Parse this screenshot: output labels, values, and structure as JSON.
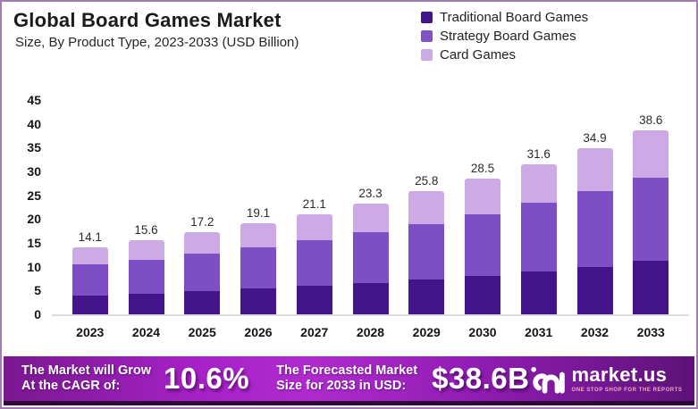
{
  "header": {
    "title": "Global Board Games Market",
    "subtitle": "Size, By Product Type, 2023-2033 (USD Billion)"
  },
  "legend": [
    {
      "label": "Traditional Board Games",
      "color": "#44148A"
    },
    {
      "label": "Strategy Board Games",
      "color": "#8052C5"
    },
    {
      "label": "Card Games",
      "color": "#CDA9E5"
    }
  ],
  "chart_data": {
    "type": "bar",
    "stacked": true,
    "title": "Global Board Games Market Size, By Product Type, 2023-2033 (USD Billion)",
    "categories": [
      "2023",
      "2024",
      "2025",
      "2026",
      "2027",
      "2028",
      "2029",
      "2030",
      "2031",
      "2032",
      "2033"
    ],
    "series": [
      {
        "name": "Traditional Board Games",
        "color": "#44148A",
        "values": [
          4.0,
          4.4,
          4.9,
          5.4,
          6.0,
          6.6,
          7.3,
          8.1,
          9.0,
          9.9,
          11.2
        ]
      },
      {
        "name": "Strategy Board Games",
        "color": "#7D4EC4",
        "values": [
          6.5,
          7.1,
          7.9,
          8.7,
          9.6,
          10.6,
          11.7,
          13.0,
          14.4,
          15.9,
          17.5
        ]
      },
      {
        "name": "Card Games",
        "color": "#CDA9E5",
        "values": [
          3.6,
          4.1,
          4.4,
          5.0,
          5.5,
          6.1,
          6.8,
          7.4,
          8.2,
          9.1,
          9.9
        ]
      }
    ],
    "totals": [
      14.1,
      15.6,
      17.2,
      19.1,
      21.1,
      23.3,
      25.8,
      28.5,
      31.6,
      34.9,
      38.6
    ],
    "total_labels": [
      "14.1",
      "15.6",
      "17.2",
      "19.1",
      "21.1",
      "23.3",
      "25.8",
      "28.5",
      "31.6",
      "34.9",
      "38.6"
    ],
    "ylabel": "",
    "xlabel": "",
    "ylim": [
      0,
      45
    ],
    "yticks": [
      0,
      5,
      10,
      15,
      20,
      25,
      30,
      35,
      40,
      45
    ],
    "grid": false,
    "legend_position": "top-right"
  },
  "footer": {
    "cagr_label_line1": "The Market will Grow",
    "cagr_label_line2": "At the CAGR of:",
    "cagr_value": "10.6%",
    "forecast_label_line1": "The Forecasted Market",
    "forecast_label_line2": "Size for 2033 in USD:",
    "forecast_value": "$38.6B",
    "brand": {
      "name": "market.us",
      "tagline": "ONE STOP SHOP FOR THE REPORTS"
    }
  },
  "colors": {
    "banner_gradient_start": "#79188F",
    "banner_gradient_mid": "#AF2BCE",
    "banner_gradient_end": "#5E1278",
    "banner_bottom_edge": "#2E0839",
    "axis_baseline": "#E0DBE3",
    "canvas_border": "#A27BB3",
    "text_dark": "#1B1B1B"
  }
}
